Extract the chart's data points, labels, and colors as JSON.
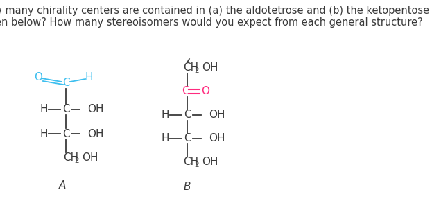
{
  "title_text": "How many chirality centers are contained in (a) the aldotetrose and (b) the ketopentose just\ngiven below? How many stereoisomers would you expect from each general structure?",
  "title_fontsize": 10.5,
  "bg_color": "#ffffff",
  "text_color": "#3a3a3a",
  "cyan_color": "#3dbfef",
  "magenta_color": "#ff2b7f",
  "label_A": "A",
  "label_B": "B",
  "figsize": [
    6.23,
    3.03
  ],
  "dpi": 100
}
